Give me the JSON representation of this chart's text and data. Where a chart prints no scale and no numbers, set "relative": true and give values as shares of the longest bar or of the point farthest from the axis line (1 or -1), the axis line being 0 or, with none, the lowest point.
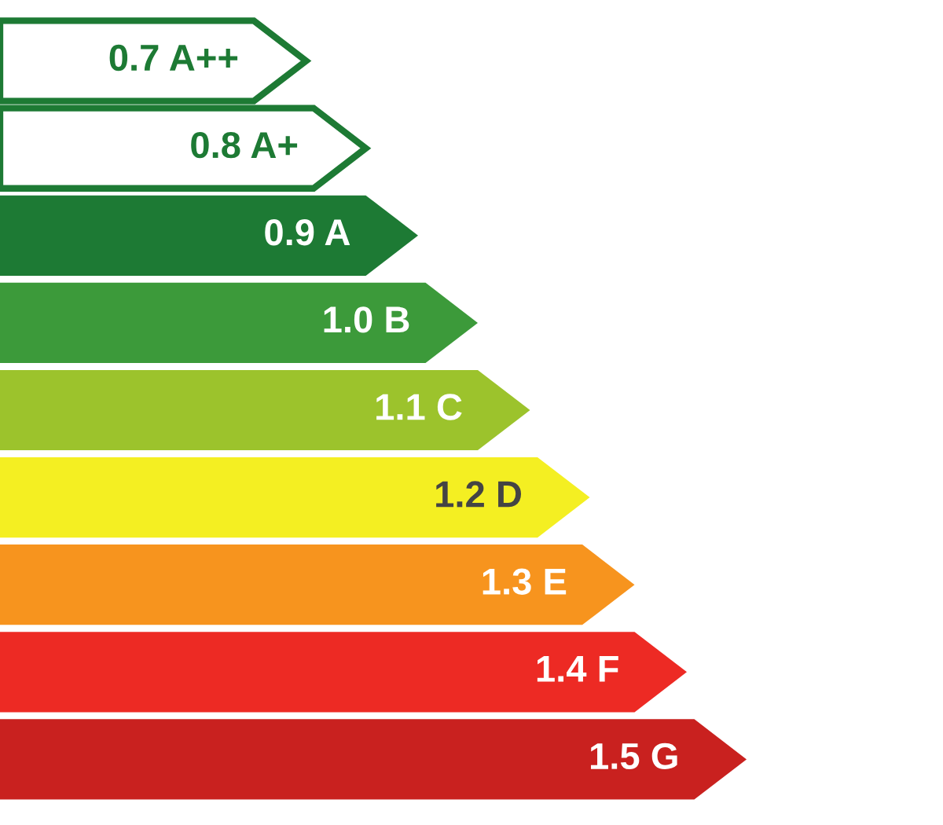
{
  "chart_data": {
    "type": "bar",
    "orientation": "horizontal",
    "relative": true,
    "grid": false,
    "legend": false,
    "categories": [
      "0.7 A++",
      "0.8 A+",
      "0.9 A",
      "1.0 B",
      "1.1 C",
      "1.2 D",
      "1.3 E",
      "1.4 F",
      "1.5 G"
    ],
    "values": [
      0.41,
      0.49,
      0.56,
      0.64,
      0.71,
      0.79,
      0.85,
      0.92,
      1.0
    ],
    "colors": [
      "#ffffff",
      "#ffffff",
      "#1d7a34",
      "#3c9a3a",
      "#9cc32c",
      "#f4ef22",
      "#f7941e",
      "#ed2a24",
      "#c9211f"
    ]
  }
}
